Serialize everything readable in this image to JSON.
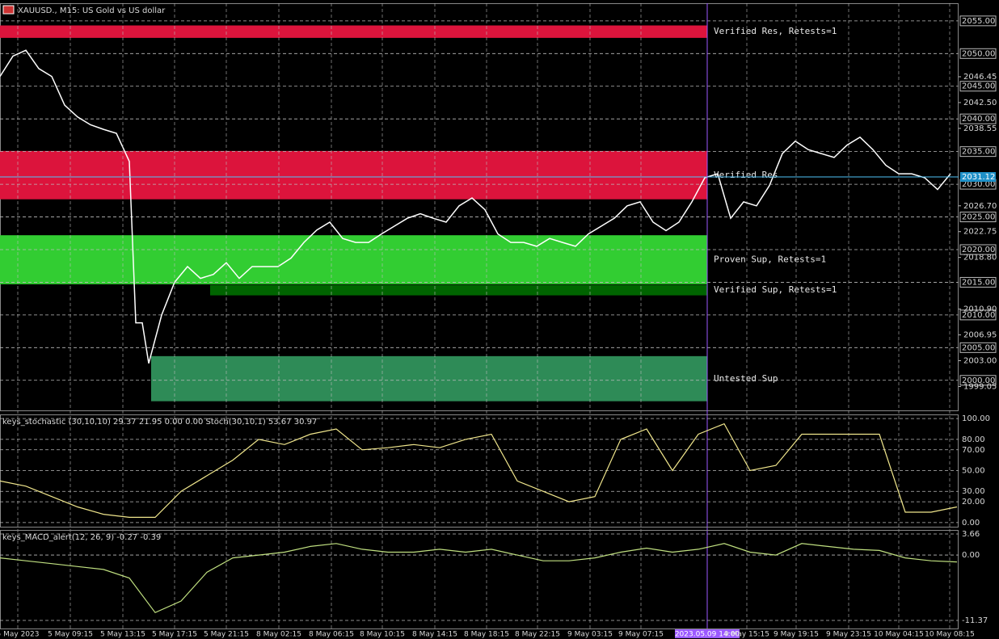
{
  "chart_data": [
    {
      "type": "price",
      "title": "XAUUSD., M15: US Gold vs US dollar",
      "color": "#ffffff",
      "x": [
        0,
        4,
        8,
        12,
        16,
        20,
        24,
        28,
        32,
        36,
        40,
        42,
        44,
        46,
        48,
        50,
        52,
        54,
        58,
        62,
        66,
        70,
        74,
        78,
        82,
        86,
        90,
        94,
        98,
        102,
        106,
        110,
        114,
        118,
        122,
        126,
        130,
        134,
        138,
        142,
        146,
        150,
        154,
        158,
        162,
        166,
        170,
        174,
        178,
        182,
        186,
        190,
        194,
        198,
        202,
        206,
        210,
        214,
        218,
        222,
        226,
        230,
        234,
        238,
        242,
        246,
        250,
        254,
        258,
        262,
        266,
        270,
        274,
        278,
        282,
        286,
        290,
        294
      ],
      "values": [
        2046.5,
        2049.6,
        2050.5,
        2047.7,
        2046.5,
        2042.1,
        2040.3,
        2039.1,
        2038.4,
        2037.8,
        2033.5,
        2008.8,
        2008.8,
        2002.6,
        2006.3,
        2010.0,
        2012.5,
        2015.0,
        2017.4,
        2015.6,
        2016.2,
        2018.0,
        2015.6,
        2017.4,
        2017.4,
        2017.4,
        2018.7,
        2021.1,
        2023.0,
        2024.2,
        2021.7,
        2021.1,
        2021.1,
        2022.4,
        2023.6,
        2024.8,
        2025.5,
        2024.8,
        2024.2,
        2026.7,
        2027.9,
        2026.1,
        2022.4,
        2021.1,
        2021.1,
        2020.5,
        2021.7,
        2021.1,
        2020.5,
        2022.4,
        2023.6,
        2024.8,
        2026.7,
        2027.3,
        2024.2,
        2022.9,
        2024.2,
        2027.3,
        2031.0,
        2031.6,
        2024.8,
        2027.3,
        2026.7,
        2029.8,
        2034.7,
        2036.6,
        2035.3,
        2034.7,
        2034.1,
        2036.0,
        2037.2,
        2035.3,
        2032.9,
        2031.6,
        2031.6,
        2031.0,
        2029.2,
        2031.6
      ],
      "xlim": [
        0,
        296
      ],
      "ylim": [
        1995.4,
        2057.7
      ],
      "yticks": [
        {
          "value": 2055,
          "label": "2055.00"
        },
        {
          "value": 2050,
          "label": "2050.00"
        },
        {
          "value": 2045,
          "label": "2045.00"
        },
        {
          "value": 2040,
          "label": "2040.00"
        },
        {
          "value": 2035,
          "label": "2035.00"
        },
        {
          "value": 2030,
          "label": "2030.00"
        },
        {
          "value": 2025,
          "label": "2025.00"
        },
        {
          "value": 2020,
          "label": "2020.00"
        },
        {
          "value": 2015,
          "label": "2015.00"
        },
        {
          "value": 2010,
          "label": "2010.00"
        },
        {
          "value": 2005,
          "label": "2005.00"
        },
        {
          "value": 2000,
          "label": "2000.00"
        }
      ],
      "ylabels": [
        {
          "value": 2046.45,
          "label": "2046.45"
        },
        {
          "value": 2042.5,
          "label": "2042.50"
        },
        {
          "value": 2038.55,
          "label": "2038.55"
        },
        {
          "value": 2026.7,
          "label": "2026.70"
        },
        {
          "value": 2022.75,
          "label": "2022.75"
        },
        {
          "value": 2018.8,
          "label": "2018.80"
        },
        {
          "value": 2010.9,
          "label": "2010.90"
        },
        {
          "value": 2006.95,
          "label": "2006.95"
        },
        {
          "value": 2003,
          "label": "2003.00"
        },
        {
          "value": 1999.05,
          "label": "1999.05"
        }
      ],
      "last_price": {
        "value": 2031.12,
        "label": "2031.12"
      },
      "xticks": [
        {
          "value": 5.5,
          "label": "5 May 2023"
        },
        {
          "value": 21.75,
          "label": "5 May 09:15"
        },
        {
          "value": 38,
          "label": "5 May 13:15"
        },
        {
          "value": 54,
          "label": "5 May 17:15"
        },
        {
          "value": 70,
          "label": "5 May 21:15"
        },
        {
          "value": 86.25,
          "label": "8 May 02:15"
        },
        {
          "value": 102.5,
          "label": "8 May 06:15"
        },
        {
          "value": 118.25,
          "label": "8 May 10:15"
        },
        {
          "value": 134.5,
          "label": "8 May 14:15"
        },
        {
          "value": 150.5,
          "label": "8 May 18:15"
        },
        {
          "value": 166.25,
          "label": "8 May 22:15"
        },
        {
          "value": 182.5,
          "label": "9 May 03:15"
        },
        {
          "value": 198.25,
          "label": "9 May 07:15"
        },
        {
          "value": 231,
          "label": "9 May 15:15"
        },
        {
          "value": 246.25,
          "label": "9 May 19:15"
        },
        {
          "value": 262.5,
          "label": "9 May 23:15"
        },
        {
          "value": 278,
          "label": "10 May 04:15"
        },
        {
          "value": 293.75,
          "label": "10 May 08:15"
        }
      ],
      "crosshair": {
        "value": 218.75,
        "label": "2023.05.09 14:00"
      },
      "zones": [
        {
          "label": "Verified Res, Retests=1",
          "top": 2054.3,
          "bottom": 2052.4,
          "x_start": 0,
          "x_end": 218.75,
          "color": "#dc143c"
        },
        {
          "label": "Verified Res",
          "top": 2035.1,
          "bottom": 2027.7,
          "x_start": 0,
          "x_end": 218.75,
          "color": "#dc143c"
        },
        {
          "label": "Proven Sup, Retests=1",
          "top": 2022.2,
          "bottom": 2014.7,
          "x_start": 0,
          "x_end": 218.75,
          "color": "#32cd32"
        },
        {
          "label": "Verified Sup, Retests=1",
          "top": 2014.6,
          "bottom": 2013.0,
          "x_start": 65,
          "x_end": 218.75,
          "color": "#006400"
        },
        {
          "label": "Untested Sup",
          "top": 2003.7,
          "bottom": 1996.8,
          "x_start": 46.75,
          "x_end": 218.75,
          "color": "#2e8b57"
        }
      ]
    },
    {
      "type": "line",
      "title": "keys_stochastic (30,10,10) 29.37 21.95 0.00 0.00 Stoch(30,10,1) 53.67 30.97",
      "color": "#f0e68c",
      "x": [
        0,
        8,
        16,
        24,
        32,
        40,
        48,
        56,
        64,
        72,
        80,
        88,
        96,
        104,
        112,
        120,
        128,
        136,
        144,
        152,
        160,
        168,
        176,
        184,
        192,
        200,
        208,
        216,
        224,
        232,
        240,
        248,
        256,
        264,
        272,
        280,
        288,
        296
      ],
      "values": [
        40,
        35,
        25,
        15,
        8,
        5,
        5,
        30,
        45,
        60,
        80,
        75,
        85,
        90,
        70,
        72,
        75,
        72,
        80,
        85,
        40,
        30,
        20,
        25,
        80,
        90,
        50,
        85,
        95,
        50,
        55,
        85,
        85,
        85,
        85,
        10,
        10,
        15
      ],
      "xlim": [
        0,
        296
      ],
      "ylim": [
        -4,
        104
      ],
      "yticks": [
        {
          "value": 100,
          "label": "100.00"
        },
        {
          "value": 80,
          "label": "80.00"
        },
        {
          "value": 70,
          "label": "70.00"
        },
        {
          "value": 50,
          "label": "50.00"
        },
        {
          "value": 30,
          "label": "30.00"
        },
        {
          "value": 20,
          "label": "20.00"
        },
        {
          "value": 0,
          "label": "0.00"
        }
      ]
    },
    {
      "type": "line",
      "title": "keys_MACD_alert(12, 26, 9) -0.27 -0.39",
      "color": "#c0e080",
      "x": [
        0,
        8,
        16,
        24,
        32,
        40,
        48,
        56,
        64,
        72,
        80,
        88,
        96,
        104,
        112,
        120,
        128,
        136,
        144,
        152,
        160,
        168,
        176,
        184,
        192,
        200,
        208,
        216,
        224,
        232,
        240,
        248,
        256,
        264,
        272,
        280,
        288,
        296
      ],
      "values": [
        -0.5,
        -1,
        -1.5,
        -2,
        -2.5,
        -4,
        -10,
        -8,
        -3,
        -0.5,
        0,
        0.5,
        1.5,
        2,
        1,
        0.5,
        0.5,
        1,
        0.5,
        1,
        0,
        -1,
        -1,
        -0.5,
        0.5,
        1.2,
        0.5,
        1,
        2,
        0.5,
        0,
        2,
        1.5,
        1,
        0.8,
        -0.5,
        -1,
        -1.2
      ],
      "xlim": [
        0,
        296
      ],
      "ylim": [
        -12.77,
        4.36
      ],
      "yticks": [
        {
          "value": 3.66,
          "label": "3.66"
        },
        {
          "value": 0,
          "label": "0.00"
        },
        {
          "value": -11.37,
          "label": "-11.37"
        }
      ]
    }
  ]
}
